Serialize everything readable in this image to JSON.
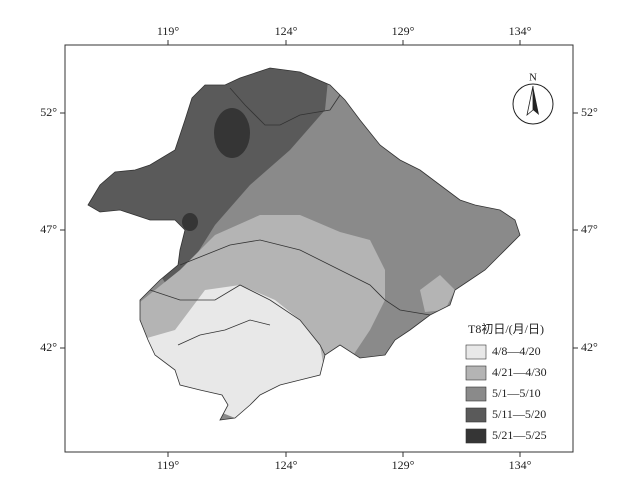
{
  "map": {
    "top_labels": [
      "119°",
      "124°",
      "129°",
      "134°"
    ],
    "bottom_labels": [
      "119°",
      "124°",
      "129°",
      "134°"
    ],
    "left_labels": [
      "52°",
      "47°",
      "42°"
    ],
    "right_labels": [
      "52°",
      "47°",
      "42°"
    ],
    "north_arrow": "N",
    "legend": {
      "title": "T8初日/(月/日)",
      "items": [
        {
          "label": "4/8—4/20",
          "color": "#e8e8e8"
        },
        {
          "label": "4/21—4/30",
          "color": "#b4b4b4"
        },
        {
          "label": "5/1—5/10",
          "color": "#8a8a8a"
        },
        {
          "label": "5/11—5/20",
          "color": "#5a5a5a"
        },
        {
          "label": "5/21—5/25",
          "color": "#353535"
        }
      ]
    }
  }
}
